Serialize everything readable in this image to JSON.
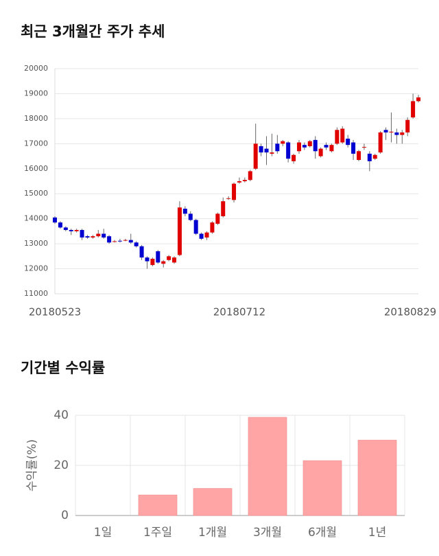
{
  "chart_data": [
    {
      "type": "candlestick",
      "title": "최근 3개월간 주가 추세",
      "x": [
        "20180523",
        null,
        null,
        null,
        null,
        null,
        null,
        null,
        null,
        null,
        null,
        null,
        null,
        null,
        null,
        null,
        null,
        null,
        null,
        null,
        null,
        null,
        null,
        null,
        null,
        null,
        null,
        null,
        null,
        null,
        null,
        null,
        null,
        null,
        "20180712",
        null,
        null,
        null,
        null,
        null,
        null,
        null,
        null,
        null,
        null,
        null,
        null,
        null,
        null,
        null,
        null,
        null,
        null,
        null,
        null,
        null,
        null,
        null,
        null,
        null,
        null,
        null,
        null,
        null,
        null,
        null,
        null,
        "20180829"
      ],
      "open": [
        14050,
        13850,
        13650,
        13550,
        13500,
        13550,
        13300,
        13250,
        13300,
        13400,
        13300,
        13100,
        13120,
        13150,
        13150,
        13050,
        12900,
        12450,
        12150,
        12700,
        12200,
        12350,
        12250,
        12550,
        14400,
        14200,
        13950,
        13400,
        13250,
        13450,
        13800,
        14100,
        14800,
        14750,
        15450,
        15500,
        15550,
        16000,
        16900,
        16800,
        16600,
        17000,
        17000,
        17050,
        16300,
        16700,
        16950,
        16900,
        17150,
        16500,
        16950,
        16700,
        17000,
        17050,
        17200,
        17050,
        16350,
        16850,
        16600,
        16400,
        16650,
        17550,
        17450,
        17450,
        17350,
        17450,
        18050,
        18700
      ],
      "high": [
        14100,
        13900,
        13700,
        13600,
        13600,
        13600,
        13350,
        13350,
        13550,
        13600,
        13350,
        13150,
        13200,
        13200,
        13400,
        13100,
        12950,
        12500,
        12450,
        12750,
        12350,
        12550,
        12500,
        14700,
        14500,
        14300,
        14000,
        13450,
        13500,
        13900,
        14250,
        14850,
        14900,
        15450,
        15650,
        15650,
        15950,
        17800,
        17000,
        17300,
        17400,
        17350,
        17150,
        17100,
        16600,
        17150,
        17050,
        17150,
        17300,
        16850,
        17050,
        17000,
        17650,
        17700,
        17350,
        17150,
        16750,
        17000,
        16700,
        16600,
        17500,
        17650,
        18250,
        17600,
        17550,
        18050,
        19000,
        18950
      ],
      "low": [
        13800,
        13600,
        13500,
        13350,
        13450,
        13150,
        13200,
        13200,
        13250,
        13200,
        13000,
        13050,
        13050,
        13100,
        13000,
        12850,
        12350,
        12000,
        12100,
        12200,
        12050,
        12300,
        12200,
        12500,
        14100,
        13900,
        13350,
        13150,
        13150,
        13400,
        13750,
        14050,
        14750,
        14650,
        15400,
        15450,
        15500,
        15950,
        16500,
        16150,
        16500,
        16600,
        16900,
        16250,
        16200,
        16600,
        16750,
        16850,
        16400,
        16450,
        16750,
        16650,
        16950,
        17000,
        16850,
        16350,
        16300,
        16750,
        15900,
        16350,
        16600,
        17150,
        17050,
        17000,
        17000,
        17300,
        18000,
        18650
      ],
      "close": [
        13850,
        13650,
        13550,
        13500,
        13550,
        13250,
        13250,
        13300,
        13400,
        13250,
        13050,
        13100,
        13100,
        13150,
        13050,
        12900,
        12450,
        12300,
        12400,
        12250,
        12300,
        12500,
        12450,
        14450,
        14200,
        13950,
        13400,
        13200,
        13450,
        13850,
        14200,
        14700,
        14820,
        15400,
        15500,
        15550,
        15900,
        17000,
        16650,
        16650,
        16650,
        16700,
        17100,
        16400,
        16550,
        17050,
        16850,
        17100,
        16700,
        16800,
        16850,
        16950,
        17550,
        17600,
        16950,
        16600,
        16700,
        16870,
        16300,
        16550,
        17450,
        17450,
        17480,
        17350,
        17450,
        17950,
        18700,
        18850
      ],
      "up_color": "#e00000",
      "down_color": "#0000d0",
      "ylim": [
        11000,
        20000
      ],
      "yticks": [
        11000,
        12000,
        13000,
        14000,
        15000,
        16000,
        17000,
        18000,
        19000,
        20000
      ],
      "grid": true
    },
    {
      "type": "bar",
      "title": "기간별 수익률",
      "ylabel": "수익률(%)",
      "categories": [
        "1일",
        "1주일",
        "1개월",
        "3개월",
        "6개월",
        "1년"
      ],
      "values": [
        0,
        8.2,
        10.8,
        39.2,
        21.9,
        30.1
      ],
      "color": "#ffa5a5",
      "ylim": [
        0,
        40
      ],
      "yticks": [
        0,
        20,
        40
      ],
      "grid": true
    }
  ]
}
